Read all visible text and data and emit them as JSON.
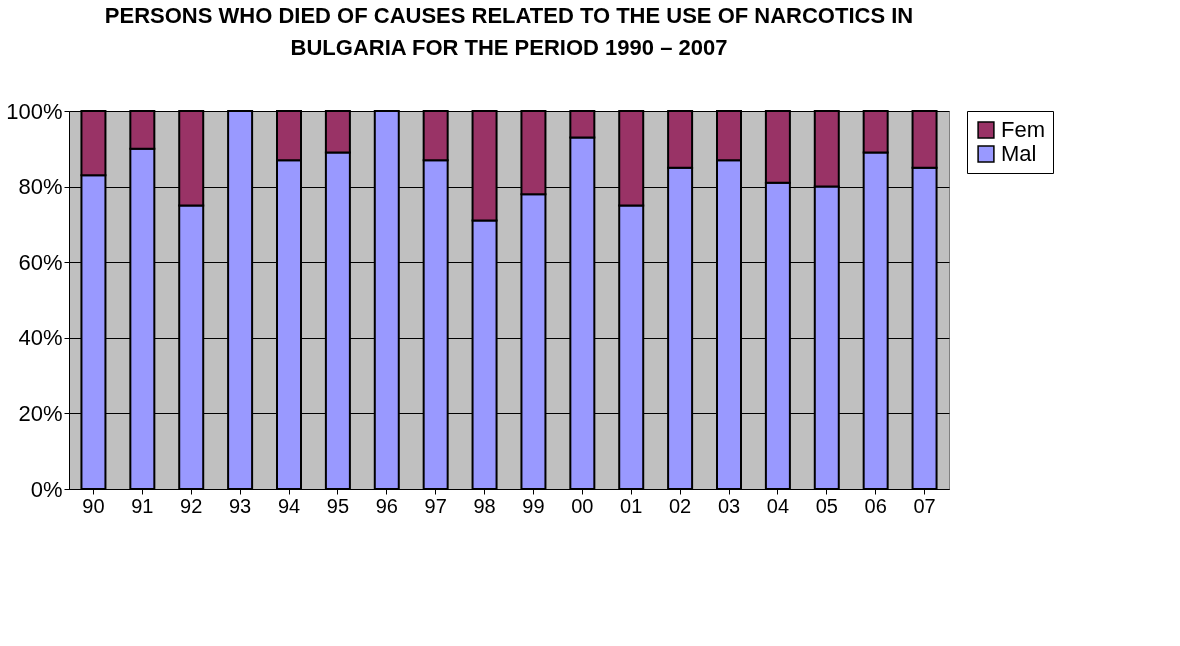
{
  "chart_data": {
    "type": "bar",
    "stacked": true,
    "title": "PERSONS WHO DIED OF CAUSES RELATED TO THE USE OF NARCOTICS IN BULGARIA FOR THE PERIOD 1990 – 2007",
    "categories": [
      "90",
      "91",
      "92",
      "93",
      "94",
      "95",
      "96",
      "97",
      "98",
      "99",
      "00",
      "01",
      "02",
      "03",
      "04",
      "05",
      "06",
      "07"
    ],
    "series": [
      {
        "name": "Mal",
        "color": "#9999ff",
        "values": [
          83,
          90,
          75,
          100,
          87,
          89,
          100,
          87,
          71,
          78,
          93,
          75,
          85,
          87,
          81,
          80,
          89,
          85
        ]
      },
      {
        "name": "Fem",
        "color": "#993366",
        "values": [
          17,
          10,
          25,
          null,
          13,
          11,
          null,
          13,
          29,
          22,
          7,
          25,
          15,
          13,
          19,
          20,
          11,
          15
        ]
      }
    ],
    "ylim": [
      0,
      100
    ],
    "yticks": [
      {
        "value": 0,
        "label": "0%"
      },
      {
        "value": 20,
        "label": "20%"
      },
      {
        "value": 40,
        "label": "40%"
      },
      {
        "value": 60,
        "label": "60%"
      },
      {
        "value": 80,
        "label": "80%"
      },
      {
        "value": 100,
        "label": "100%"
      }
    ],
    "grid": "y",
    "legend": "right"
  }
}
